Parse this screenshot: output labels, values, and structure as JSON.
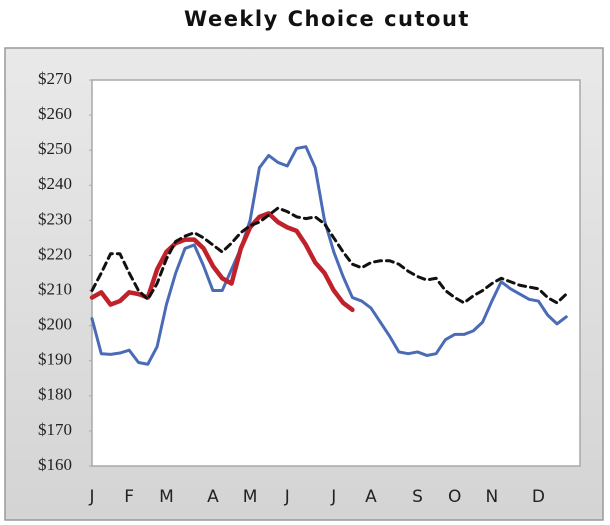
{
  "chart_data": {
    "type": "line",
    "title": "Weekly Choice cutout",
    "categories": [
      "J",
      null,
      null,
      null,
      "F",
      null,
      null,
      null,
      "M",
      null,
      null,
      null,
      null,
      "A",
      null,
      null,
      null,
      "M",
      null,
      null,
      null,
      "J",
      null,
      null,
      null,
      null,
      "J",
      null,
      null,
      null,
      "A",
      null,
      null,
      null,
      null,
      "S",
      null,
      null,
      null,
      "O",
      null,
      null,
      null,
      "N",
      null,
      null,
      null,
      null,
      "D",
      null,
      null,
      null
    ],
    "series": [
      {
        "color": "#4a6bb5",
        "dash": false,
        "values": [
          202,
          192,
          191.8,
          192.2,
          193,
          189.5,
          189,
          194,
          206,
          215,
          222,
          223,
          217,
          210,
          210,
          216,
          222,
          230,
          245,
          248.5,
          246.5,
          245.5,
          250.5,
          251,
          245,
          230,
          221,
          214,
          208,
          207,
          205,
          201,
          197,
          192.5,
          192,
          192.5,
          191.5,
          192,
          196,
          197.5,
          197.5,
          198.5,
          201,
          207,
          212.5,
          210.5,
          209,
          207.5,
          207,
          203,
          200.5,
          202.5
        ]
      },
      {
        "color": "#c0212b",
        "dash": false,
        "values": [
          208,
          209.5,
          206,
          207,
          209.5,
          209,
          208,
          216,
          221,
          223.5,
          224.5,
          224.5,
          222,
          217,
          213.5,
          212,
          222,
          228,
          231,
          232,
          229.5,
          228,
          227,
          223,
          218,
          215,
          210,
          206.5,
          204.5,
          null,
          null,
          null,
          null,
          null,
          null,
          null,
          null,
          null,
          null,
          null,
          null,
          null,
          null,
          null,
          null,
          null,
          null,
          null,
          null,
          null,
          null,
          null
        ]
      },
      {
        "color": "#111111",
        "dash": true,
        "values": [
          210,
          215,
          220.5,
          220.5,
          215,
          210,
          207.5,
          212,
          219,
          224,
          225.5,
          226.5,
          225,
          223,
          221,
          223.5,
          226.5,
          228.5,
          229.5,
          231.5,
          233.5,
          232.5,
          231,
          230.5,
          231,
          229,
          225,
          221,
          217.5,
          216.5,
          218,
          218.5,
          218.5,
          217.5,
          215.5,
          214,
          213,
          213.5,
          210,
          208,
          206.5,
          208.5,
          210,
          212,
          213.5,
          212.5,
          211.5,
          211,
          210.5,
          208,
          206.5,
          209
        ]
      }
    ],
    "ylim": [
      160,
      270
    ],
    "yticks": [
      {
        "value": 160,
        "label": "$160"
      },
      {
        "value": 170,
        "label": "$170"
      },
      {
        "value": 180,
        "label": "$180"
      },
      {
        "value": 190,
        "label": "$190"
      },
      {
        "value": 200,
        "label": "$200"
      },
      {
        "value": 210,
        "label": "$210"
      },
      {
        "value": 220,
        "label": "$220"
      },
      {
        "value": 230,
        "label": "$230"
      },
      {
        "value": 240,
        "label": "$240"
      },
      {
        "value": 250,
        "label": "$250"
      },
      {
        "value": 260,
        "label": "$260"
      },
      {
        "value": 270,
        "label": "$270"
      }
    ],
    "grid": false
  }
}
